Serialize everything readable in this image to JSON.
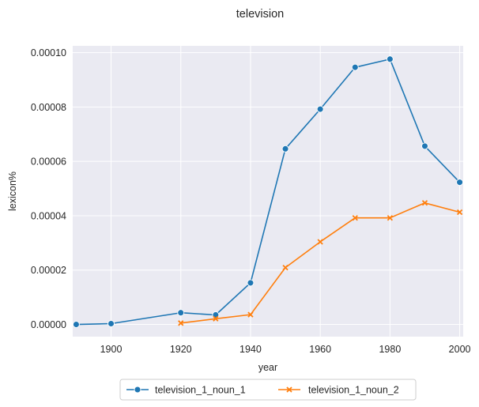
{
  "chart_data": {
    "type": "line",
    "title": "television",
    "xlabel": "year",
    "ylabel": "lexicon%",
    "xlim": [
      1889,
      2001
    ],
    "ylim": [
      -4.5e-06,
      0.0001025
    ],
    "x_ticks": [
      1900,
      1920,
      1940,
      1960,
      1980,
      2000
    ],
    "y_ticks": [
      0.0,
      2e-05,
      4e-05,
      6e-05,
      8e-05,
      0.0001
    ],
    "y_tick_labels": [
      "0.00000",
      "0.00002",
      "0.00004",
      "0.00006",
      "0.00008",
      "0.00010"
    ],
    "grid": true,
    "legend_position": "bottom-center",
    "background": "#eaeaf2",
    "series": [
      {
        "name": "television_1_noun_1",
        "color": "#1f77b4",
        "marker": "circle",
        "x": [
          1890,
          1900,
          1920,
          1930,
          1940,
          1950,
          1960,
          1970,
          1980,
          1990,
          2000
        ],
        "y": [
          0.0,
          3e-07,
          4.3e-06,
          3.5e-06,
          1.53e-05,
          6.46e-05,
          7.92e-05,
          9.46e-05,
          9.76e-05,
          6.56e-05,
          5.23e-05
        ]
      },
      {
        "name": "television_1_noun_2",
        "color": "#ff7f0e",
        "marker": "x",
        "x": [
          1920,
          1930,
          1940,
          1950,
          1960,
          1970,
          1980,
          1990,
          2000
        ],
        "y": [
          5e-07,
          2.1e-06,
          3.6e-06,
          2.09e-05,
          3.04e-05,
          3.92e-05,
          3.92e-05,
          4.47e-05,
          4.13e-05
        ]
      }
    ]
  }
}
